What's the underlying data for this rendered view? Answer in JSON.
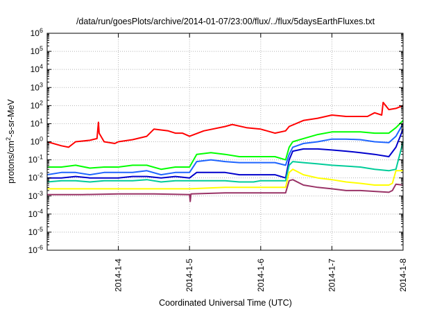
{
  "chart_data": {
    "type": "line",
    "title": "/data/run/goesPlots/archive/2014-01-07/23:00/flux/../flux/5daysEarthFluxes.txt",
    "xlabel": "Coordinated Universal Time (UTC)",
    "ylabel_parts": [
      "protons/cm",
      "2",
      "-s-sr-MeV"
    ],
    "x_unit": "days since 2014-1-3 00:00 UTC",
    "xlim": [
      0,
      5.0
    ],
    "xticks": [
      {
        "value": 1,
        "label": "2014-1-4"
      },
      {
        "value": 2,
        "label": "2014-1-5"
      },
      {
        "value": 3,
        "label": "2014-1-6"
      },
      {
        "value": 4,
        "label": "2014-1-7"
      },
      {
        "value": 5,
        "label": "2014-1-8"
      }
    ],
    "y_scale": "log",
    "ylim_exp": [
      -6,
      6
    ],
    "yticks": [
      {
        "exp": 6,
        "label": "10",
        "sup": "6"
      },
      {
        "exp": 5,
        "label": "10",
        "sup": "5"
      },
      {
        "exp": 4,
        "label": "10",
        "sup": "4"
      },
      {
        "exp": 3,
        "label": "10",
        "sup": "3"
      },
      {
        "exp": 2,
        "label": "10",
        "sup": "2"
      },
      {
        "exp": 1,
        "label": "10",
        "sup": "1"
      },
      {
        "exp": 0,
        "label": "10",
        "sup": "0"
      },
      {
        "exp": -1,
        "label": "10",
        "sup": "-1"
      },
      {
        "exp": -2,
        "label": "10",
        "sup": "-2"
      },
      {
        "exp": -3,
        "label": "10",
        "sup": "-3"
      },
      {
        "exp": -4,
        "label": "10",
        "sup": "-4"
      },
      {
        "exp": -5,
        "label": "10",
        "sup": "-5"
      },
      {
        "exp": -6,
        "label": "10",
        "sup": "-6"
      }
    ],
    "grid": true,
    "legend": "none",
    "series": [
      {
        "color": "#ff0000",
        "x": [
          0,
          0.2,
          0.3,
          0.4,
          0.6,
          0.7,
          0.72,
          0.73,
          0.8,
          0.95,
          1.0,
          1.2,
          1.4,
          1.5,
          1.7,
          1.8,
          1.9,
          2.0,
          2.2,
          2.5,
          2.6,
          2.8,
          3.0,
          3.2,
          3.35,
          3.4,
          3.6,
          3.8,
          4.0,
          4.2,
          4.5,
          4.6,
          4.7,
          4.72,
          4.8,
          4.9,
          5.0
        ],
        "y": [
          1.0,
          0.6,
          0.5,
          1.0,
          1.2,
          1.5,
          12,
          3,
          1.0,
          0.8,
          1.0,
          1.3,
          2,
          5,
          4,
          3,
          3,
          2,
          4,
          7,
          9,
          6,
          5,
          3,
          4,
          7,
          15,
          20,
          30,
          25,
          25,
          40,
          30,
          150,
          60,
          70,
          100
        ]
      },
      {
        "color": "#00ff00",
        "x": [
          0,
          0.2,
          0.4,
          0.6,
          0.8,
          1.0,
          1.2,
          1.4,
          1.6,
          1.8,
          2.0,
          2.1,
          2.3,
          2.5,
          2.7,
          2.9,
          3.0,
          3.2,
          3.35,
          3.4,
          3.45,
          3.6,
          3.8,
          4.0,
          4.2,
          4.4,
          4.6,
          4.8,
          4.9,
          5.0
        ],
        "y": [
          0.04,
          0.04,
          0.05,
          0.035,
          0.04,
          0.04,
          0.05,
          0.05,
          0.03,
          0.04,
          0.04,
          0.2,
          0.25,
          0.2,
          0.15,
          0.15,
          0.15,
          0.15,
          0.1,
          0.5,
          1.0,
          1.5,
          2.5,
          3.5,
          3.5,
          3.5,
          3.0,
          3.0,
          6,
          15
        ]
      },
      {
        "color": "#1e64ff",
        "x": [
          0,
          0.2,
          0.4,
          0.6,
          0.8,
          1.0,
          1.2,
          1.4,
          1.6,
          1.8,
          2.0,
          2.1,
          2.3,
          2.5,
          2.7,
          2.9,
          3.0,
          3.2,
          3.35,
          3.4,
          3.45,
          3.6,
          3.8,
          4.0,
          4.2,
          4.4,
          4.6,
          4.8,
          4.9,
          5.0
        ],
        "y": [
          0.015,
          0.02,
          0.02,
          0.015,
          0.02,
          0.02,
          0.02,
          0.025,
          0.015,
          0.02,
          0.02,
          0.08,
          0.1,
          0.08,
          0.07,
          0.07,
          0.07,
          0.07,
          0.05,
          0.2,
          0.5,
          0.8,
          1.0,
          1.4,
          1.4,
          1.3,
          1.0,
          0.9,
          2,
          10
        ]
      },
      {
        "color": "#0000cc",
        "x": [
          0,
          0.2,
          0.4,
          0.6,
          0.8,
          1.0,
          1.2,
          1.4,
          1.6,
          1.8,
          2.0,
          2.1,
          2.3,
          2.5,
          2.7,
          2.9,
          3.0,
          3.2,
          3.35,
          3.4,
          3.45,
          3.6,
          3.8,
          4.0,
          4.2,
          4.4,
          4.6,
          4.8,
          4.9,
          5.0
        ],
        "y": [
          0.01,
          0.01,
          0.012,
          0.01,
          0.01,
          0.01,
          0.012,
          0.012,
          0.01,
          0.012,
          0.01,
          0.02,
          0.02,
          0.02,
          0.015,
          0.015,
          0.015,
          0.015,
          0.01,
          0.1,
          0.3,
          0.4,
          0.4,
          0.35,
          0.3,
          0.25,
          0.2,
          0.15,
          0.5,
          5
        ]
      },
      {
        "color": "#00cc99",
        "x": [
          0,
          0.2,
          0.4,
          0.6,
          0.8,
          1.0,
          1.2,
          1.4,
          1.6,
          1.8,
          2.0,
          2.1,
          2.3,
          2.5,
          2.7,
          2.9,
          3.0,
          3.2,
          3.35,
          3.4,
          3.45,
          3.6,
          3.8,
          4.0,
          4.2,
          4.4,
          4.6,
          4.8,
          4.9,
          5.0
        ],
        "y": [
          0.006,
          0.007,
          0.007,
          0.006,
          0.007,
          0.007,
          0.007,
          0.008,
          0.006,
          0.007,
          0.007,
          0.007,
          0.007,
          0.007,
          0.006,
          0.006,
          0.007,
          0.007,
          0.007,
          0.05,
          0.08,
          0.07,
          0.06,
          0.05,
          0.045,
          0.04,
          0.03,
          0.025,
          0.03,
          1.0
        ]
      },
      {
        "color": "#ffff00",
        "x": [
          0,
          0.5,
          1.0,
          1.5,
          2.0,
          2.5,
          3.0,
          3.35,
          3.4,
          3.45,
          3.6,
          3.8,
          4.0,
          4.2,
          4.4,
          4.6,
          4.8,
          4.85,
          4.9,
          5.0
        ],
        "y": [
          0.0025,
          0.0025,
          0.0025,
          0.0025,
          0.0025,
          0.003,
          0.003,
          0.003,
          0.02,
          0.03,
          0.015,
          0.01,
          0.008,
          0.006,
          0.005,
          0.004,
          0.004,
          0.005,
          0.025,
          0.025
        ]
      },
      {
        "color": "#993366",
        "x": [
          0,
          0.5,
          1.0,
          1.5,
          2.0,
          2.01,
          2.02,
          2.5,
          3.0,
          3.35,
          3.4,
          3.45,
          3.6,
          3.8,
          4.0,
          4.2,
          4.4,
          4.6,
          4.8,
          4.85,
          4.9,
          5.0
        ],
        "y": [
          0.0012,
          0.0012,
          0.0013,
          0.0013,
          0.0012,
          0.0005,
          0.0013,
          0.0015,
          0.0015,
          0.0015,
          0.007,
          0.008,
          0.004,
          0.003,
          0.0025,
          0.002,
          0.002,
          0.0018,
          0.0016,
          0.002,
          0.0045,
          0.004
        ]
      }
    ]
  }
}
